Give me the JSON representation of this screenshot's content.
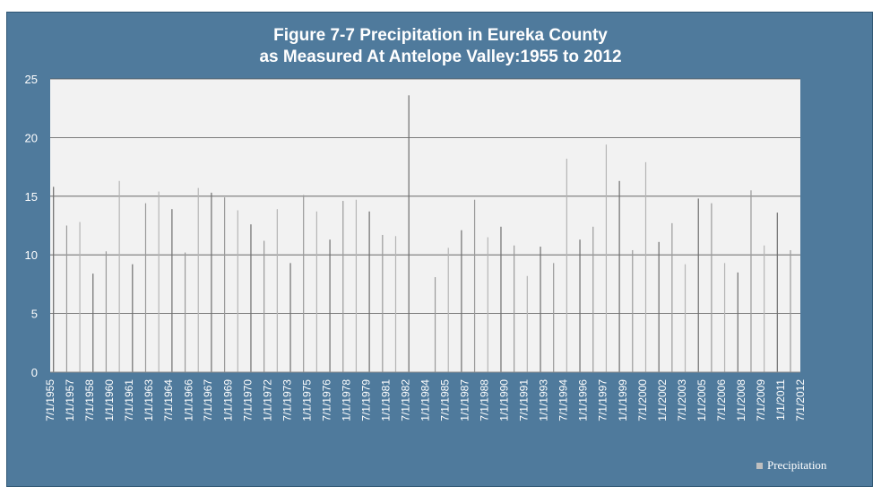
{
  "chart_data": {
    "type": "bar",
    "title": "Figure 7-7 Precipitation in Eureka County",
    "subtitle": "as Measured At Antelope Valley:1955 to 2012",
    "xlabel": "",
    "ylabel": "",
    "ylim": [
      0,
      25
    ],
    "yticks": [
      "0",
      "5",
      "10",
      "15",
      "20",
      "25"
    ],
    "grid": true,
    "legend": "bottom-right",
    "colors": {
      "bar": "#9a9a9a",
      "plot_bg": "#f2f2f2",
      "frame_bg": "#4f7a9c"
    },
    "categories": [
      "7/1/1955",
      "1/1/1957",
      "7/1/1958",
      "1/1/1960",
      "7/1/1961",
      "1/1/1963",
      "7/1/1964",
      "1/1/1966",
      "7/1/1967",
      "1/1/1969",
      "7/1/1970",
      "1/1/1972",
      "7/1/1973",
      "1/1/1975",
      "7/1/1976",
      "1/1/1978",
      "7/1/1979",
      "1/1/1981",
      "7/1/1982",
      "1/1/1984",
      "7/1/1985",
      "1/1/1987",
      "7/1/1988",
      "1/1/1990",
      "7/1/1991",
      "1/1/1993",
      "7/1/1994",
      "1/1/1996",
      "7/1/1997",
      "1/1/1999",
      "7/1/2000",
      "1/1/2002",
      "7/1/2003",
      "1/1/2005",
      "7/1/2006",
      "1/1/2008",
      "7/1/2009",
      "1/1/2011",
      "7/1/2012"
    ],
    "series": [
      {
        "name": "Precipitation",
        "points": [
          {
            "x": "1955-10-01",
            "y": 15.8
          },
          {
            "x": "1956-10-01",
            "y": 12.5
          },
          {
            "x": "1957-10-01",
            "y": 12.8
          },
          {
            "x": "1958-10-01",
            "y": 8.4
          },
          {
            "x": "1959-10-01",
            "y": 10.3
          },
          {
            "x": "1960-10-01",
            "y": 16.3
          },
          {
            "x": "1961-10-01",
            "y": 9.2
          },
          {
            "x": "1962-10-01",
            "y": 14.4
          },
          {
            "x": "1963-10-01",
            "y": 15.4
          },
          {
            "x": "1964-10-01",
            "y": 13.9
          },
          {
            "x": "1965-10-01",
            "y": 10.2
          },
          {
            "x": "1966-10-01",
            "y": 15.7
          },
          {
            "x": "1967-10-01",
            "y": 15.3
          },
          {
            "x": "1968-10-01",
            "y": 14.9
          },
          {
            "x": "1969-10-01",
            "y": 13.8
          },
          {
            "x": "1970-10-01",
            "y": 12.6
          },
          {
            "x": "1971-10-01",
            "y": 11.2
          },
          {
            "x": "1972-10-01",
            "y": 13.9
          },
          {
            "x": "1973-10-01",
            "y": 9.3
          },
          {
            "x": "1974-10-01",
            "y": 15.1
          },
          {
            "x": "1975-10-01",
            "y": 13.7
          },
          {
            "x": "1976-10-01",
            "y": 11.3
          },
          {
            "x": "1977-10-01",
            "y": 14.6
          },
          {
            "x": "1978-10-01",
            "y": 14.7
          },
          {
            "x": "1979-10-01",
            "y": 13.7
          },
          {
            "x": "1980-10-01",
            "y": 11.7
          },
          {
            "x": "1981-10-01",
            "y": 11.6
          },
          {
            "x": "1982-10-01",
            "y": 23.6
          },
          {
            "x": "1984-10-01",
            "y": 8.1
          },
          {
            "x": "1985-10-01",
            "y": 10.6
          },
          {
            "x": "1986-10-01",
            "y": 12.1
          },
          {
            "x": "1987-10-01",
            "y": 14.7
          },
          {
            "x": "1988-10-01",
            "y": 11.5
          },
          {
            "x": "1989-10-01",
            "y": 12.4
          },
          {
            "x": "1990-10-01",
            "y": 10.8
          },
          {
            "x": "1991-10-01",
            "y": 8.2
          },
          {
            "x": "1992-10-01",
            "y": 10.7
          },
          {
            "x": "1993-10-01",
            "y": 9.3
          },
          {
            "x": "1994-10-01",
            "y": 18.2
          },
          {
            "x": "1995-10-01",
            "y": 11.3
          },
          {
            "x": "1996-10-01",
            "y": 12.4
          },
          {
            "x": "1997-10-01",
            "y": 19.4
          },
          {
            "x": "1998-10-01",
            "y": 16.3
          },
          {
            "x": "1999-10-01",
            "y": 10.4
          },
          {
            "x": "2000-10-01",
            "y": 17.9
          },
          {
            "x": "2001-10-01",
            "y": 11.1
          },
          {
            "x": "2002-10-01",
            "y": 12.7
          },
          {
            "x": "2003-10-01",
            "y": 9.2
          },
          {
            "x": "2004-10-01",
            "y": 14.8
          },
          {
            "x": "2005-10-01",
            "y": 14.4
          },
          {
            "x": "2006-10-01",
            "y": 9.3
          },
          {
            "x": "2007-10-01",
            "y": 8.5
          },
          {
            "x": "2008-10-01",
            "y": 15.5
          },
          {
            "x": "2009-10-01",
            "y": 10.8
          },
          {
            "x": "2010-10-01",
            "y": 13.6
          },
          {
            "x": "2011-10-01",
            "y": 10.4
          }
        ]
      }
    ]
  }
}
